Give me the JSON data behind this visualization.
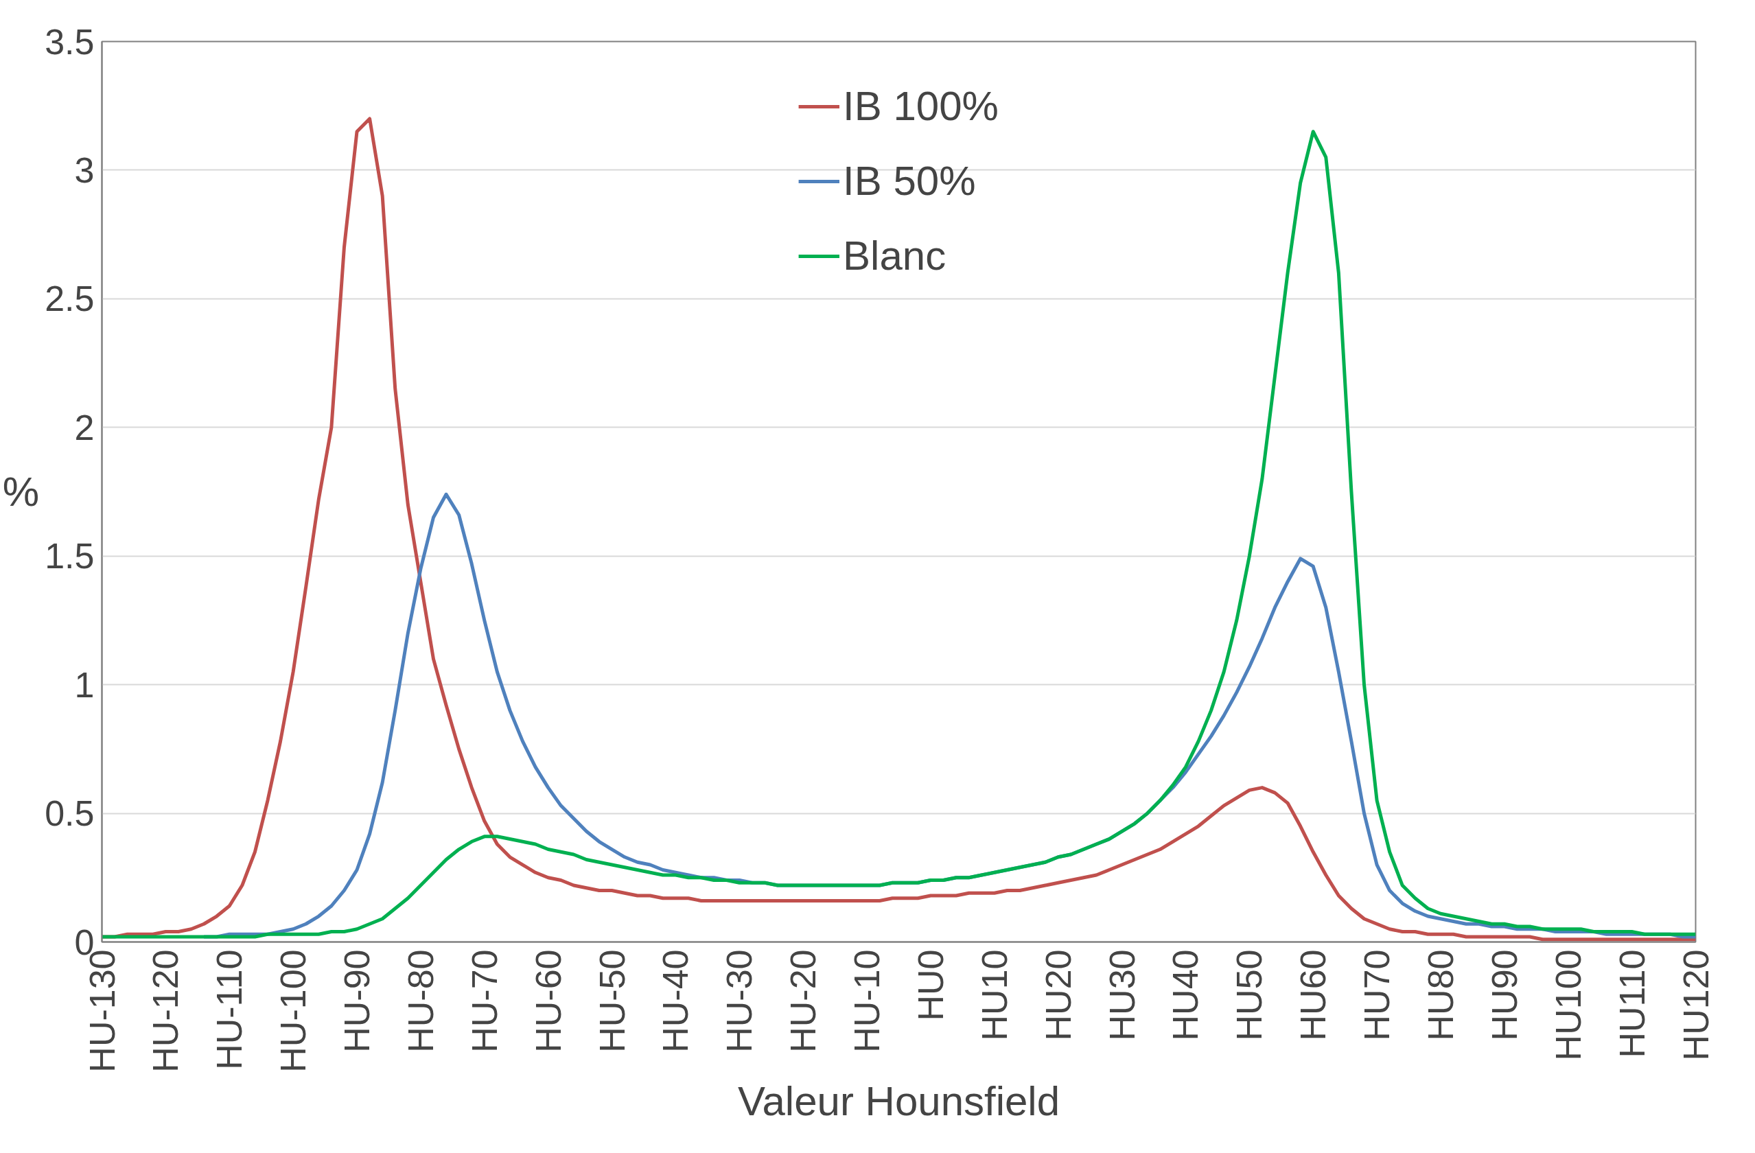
{
  "chart_data": {
    "type": "line",
    "xlabel": "Valeur Hounsfield",
    "ylabel": "%",
    "ylim": [
      0,
      3.5
    ],
    "categories": [
      "HU-130",
      null,
      null,
      null,
      null,
      "HU-120",
      null,
      null,
      null,
      null,
      "HU-110",
      null,
      null,
      null,
      null,
      "HU-100",
      null,
      null,
      null,
      null,
      "HU-90",
      null,
      null,
      null,
      null,
      "HU-80",
      null,
      null,
      null,
      null,
      "HU-70",
      null,
      null,
      null,
      null,
      "HU-60",
      null,
      null,
      null,
      null,
      "HU-50",
      null,
      null,
      null,
      null,
      "HU-40",
      null,
      null,
      null,
      null,
      "HU-30",
      null,
      null,
      null,
      null,
      "HU-20",
      null,
      null,
      null,
      null,
      "HU-10",
      null,
      null,
      null,
      null,
      "HU0",
      null,
      null,
      null,
      null,
      "HU10",
      null,
      null,
      null,
      null,
      "HU20",
      null,
      null,
      null,
      null,
      "HU30",
      null,
      null,
      null,
      null,
      "HU40",
      null,
      null,
      null,
      null,
      "HU50",
      null,
      null,
      null,
      null,
      "HU60",
      null,
      null,
      null,
      null,
      "HU70",
      null,
      null,
      null,
      null,
      "HU80",
      null,
      null,
      null,
      null,
      "HU90",
      null,
      null,
      null,
      null,
      "HU100",
      null,
      null,
      null,
      null,
      "HU110",
      null,
      null,
      null,
      null,
      "HU120"
    ],
    "yticks": [
      0,
      0.5,
      1,
      1.5,
      2,
      2.5,
      3,
      3.5
    ],
    "grid": "y",
    "legend": "top",
    "marker": "none",
    "line_style": "solid",
    "series": [
      {
        "name": "IB 100%",
        "color": "#c0504d",
        "values": [
          0.02,
          0.02,
          0.03,
          0.03,
          0.03,
          0.04,
          0.04,
          0.05,
          0.07,
          0.1,
          0.14,
          0.22,
          0.35,
          0.55,
          0.78,
          1.05,
          1.38,
          1.72,
          2.0,
          2.7,
          3.15,
          3.2,
          2.9,
          2.15,
          1.7,
          1.4,
          1.1,
          0.92,
          0.75,
          0.6,
          0.47,
          0.38,
          0.33,
          0.3,
          0.27,
          0.25,
          0.24,
          0.22,
          0.21,
          0.2,
          0.2,
          0.19,
          0.18,
          0.18,
          0.17,
          0.17,
          0.17,
          0.16,
          0.16,
          0.16,
          0.16,
          0.16,
          0.16,
          0.16,
          0.16,
          0.16,
          0.16,
          0.16,
          0.16,
          0.16,
          0.16,
          0.16,
          0.17,
          0.17,
          0.17,
          0.18,
          0.18,
          0.18,
          0.19,
          0.19,
          0.19,
          0.2,
          0.2,
          0.21,
          0.22,
          0.23,
          0.24,
          0.25,
          0.26,
          0.28,
          0.3,
          0.32,
          0.34,
          0.36,
          0.39,
          0.42,
          0.45,
          0.49,
          0.53,
          0.56,
          0.59,
          0.6,
          0.58,
          0.54,
          0.45,
          0.35,
          0.26,
          0.18,
          0.13,
          0.09,
          0.07,
          0.05,
          0.04,
          0.04,
          0.03,
          0.03,
          0.03,
          0.02,
          0.02,
          0.02,
          0.02,
          0.02,
          0.02,
          0.01,
          0.01,
          0.01,
          0.01,
          0.01,
          0.01,
          0.01,
          0.01,
          0.01,
          0.01,
          0.01,
          0.01,
          0.01
        ]
      },
      {
        "name": "IB 50%",
        "color": "#4f81bd",
        "values": [
          null,
          null,
          null,
          null,
          null,
          null,
          null,
          null,
          0.02,
          0.02,
          0.03,
          0.03,
          0.03,
          0.03,
          0.04,
          0.05,
          0.07,
          0.1,
          0.14,
          0.2,
          0.28,
          0.42,
          0.62,
          0.9,
          1.2,
          1.45,
          1.65,
          1.74,
          1.66,
          1.47,
          1.25,
          1.05,
          0.9,
          0.78,
          0.68,
          0.6,
          0.53,
          0.48,
          0.43,
          0.39,
          0.36,
          0.33,
          0.31,
          0.3,
          0.28,
          0.27,
          0.26,
          0.25,
          0.25,
          0.24,
          0.24,
          0.23,
          0.23,
          0.22,
          0.22,
          0.22,
          0.22,
          0.22,
          0.22,
          0.22,
          0.22,
          0.22,
          0.23,
          0.23,
          0.23,
          0.24,
          0.24,
          0.25,
          0.25,
          0.26,
          0.27,
          0.28,
          0.29,
          0.3,
          0.31,
          0.33,
          0.34,
          0.36,
          0.38,
          0.4,
          0.43,
          0.46,
          0.5,
          0.55,
          0.6,
          0.66,
          0.73,
          0.8,
          0.88,
          0.97,
          1.07,
          1.18,
          1.3,
          1.4,
          1.49,
          1.46,
          1.3,
          1.05,
          0.78,
          0.5,
          0.3,
          0.2,
          0.15,
          0.12,
          0.1,
          0.09,
          0.08,
          0.07,
          0.07,
          0.06,
          0.06,
          0.05,
          0.05,
          0.05,
          0.04,
          0.04,
          0.04,
          0.04,
          0.03,
          0.03,
          0.03,
          0.03,
          0.03,
          0.03,
          0.02,
          0.02
        ]
      },
      {
        "name": "Blanc",
        "color": "#00b050",
        "values": [
          0.02,
          0.02,
          0.02,
          0.02,
          0.02,
          0.02,
          0.02,
          0.02,
          0.02,
          0.02,
          0.02,
          0.02,
          0.02,
          0.03,
          0.03,
          0.03,
          0.03,
          0.03,
          0.04,
          0.04,
          0.05,
          0.07,
          0.09,
          0.13,
          0.17,
          0.22,
          0.27,
          0.32,
          0.36,
          0.39,
          0.41,
          0.41,
          0.4,
          0.39,
          0.38,
          0.36,
          0.35,
          0.34,
          0.32,
          0.31,
          0.3,
          0.29,
          0.28,
          0.27,
          0.26,
          0.26,
          0.25,
          0.25,
          0.24,
          0.24,
          0.23,
          0.23,
          0.23,
          0.22,
          0.22,
          0.22,
          0.22,
          0.22,
          0.22,
          0.22,
          0.22,
          0.22,
          0.23,
          0.23,
          0.23,
          0.24,
          0.24,
          0.25,
          0.25,
          0.26,
          0.27,
          0.28,
          0.29,
          0.3,
          0.31,
          0.33,
          0.34,
          0.36,
          0.38,
          0.4,
          0.43,
          0.46,
          0.5,
          0.55,
          0.61,
          0.68,
          0.78,
          0.9,
          1.05,
          1.25,
          1.5,
          1.8,
          2.2,
          2.6,
          2.95,
          3.15,
          3.05,
          2.6,
          1.75,
          1.0,
          0.55,
          0.35,
          0.22,
          0.17,
          0.13,
          0.11,
          0.1,
          0.09,
          0.08,
          0.07,
          0.07,
          0.06,
          0.06,
          0.05,
          0.05,
          0.05,
          0.05,
          0.04,
          0.04,
          0.04,
          0.04,
          0.03,
          0.03,
          0.03,
          0.03,
          0.03
        ]
      }
    ]
  }
}
